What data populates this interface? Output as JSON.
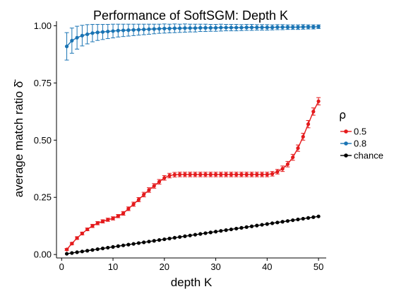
{
  "chart_data": {
    "type": "line",
    "title": "Performance of SoftSGM: Depth K",
    "xlabel": "depth K",
    "ylabel": "average match ratio δ̄",
    "xlim": [
      -1,
      51.5
    ],
    "ylim": [
      -0.015,
      1.02
    ],
    "xticks": [
      0,
      10,
      20,
      30,
      40,
      50
    ],
    "yticks": [
      0.0,
      0.25,
      0.5,
      0.75,
      1.0
    ],
    "xtick_labels": [
      "0",
      "10",
      "20",
      "30",
      "40",
      "50"
    ],
    "ytick_labels": [
      "0.00",
      "0.25",
      "0.50",
      "0.75",
      "1.00"
    ],
    "grid": false,
    "legend": {
      "title": "ρ",
      "position": "right"
    },
    "x": [
      1,
      2,
      3,
      4,
      5,
      6,
      7,
      8,
      9,
      10,
      11,
      12,
      13,
      14,
      15,
      16,
      17,
      18,
      19,
      20,
      21,
      22,
      23,
      24,
      25,
      26,
      27,
      28,
      29,
      30,
      31,
      32,
      33,
      34,
      35,
      36,
      37,
      38,
      39,
      40,
      41,
      42,
      43,
      44,
      45,
      46,
      47,
      48,
      49,
      50
    ],
    "series": [
      {
        "name": "0.5",
        "color": "#e41a1c",
        "values": [
          0.022,
          0.048,
          0.072,
          0.092,
          0.11,
          0.125,
          0.137,
          0.145,
          0.152,
          0.158,
          0.168,
          0.18,
          0.2,
          0.22,
          0.24,
          0.262,
          0.282,
          0.3,
          0.318,
          0.335,
          0.345,
          0.349,
          0.35,
          0.35,
          0.35,
          0.35,
          0.35,
          0.35,
          0.35,
          0.35,
          0.35,
          0.35,
          0.35,
          0.35,
          0.35,
          0.35,
          0.35,
          0.35,
          0.35,
          0.35,
          0.353,
          0.362,
          0.375,
          0.395,
          0.425,
          0.465,
          0.515,
          0.57,
          0.625,
          0.67
        ],
        "errors": [
          0.004,
          0.005,
          0.006,
          0.006,
          0.006,
          0.007,
          0.007,
          0.007,
          0.007,
          0.007,
          0.007,
          0.008,
          0.008,
          0.009,
          0.009,
          0.01,
          0.01,
          0.01,
          0.01,
          0.01,
          0.01,
          0.01,
          0.01,
          0.01,
          0.01,
          0.01,
          0.01,
          0.01,
          0.01,
          0.01,
          0.01,
          0.01,
          0.01,
          0.01,
          0.01,
          0.01,
          0.01,
          0.01,
          0.01,
          0.01,
          0.01,
          0.01,
          0.012,
          0.012,
          0.013,
          0.014,
          0.015,
          0.016,
          0.016,
          0.016
        ]
      },
      {
        "name": "0.8",
        "color": "#1a74b4",
        "values": [
          0.91,
          0.935,
          0.948,
          0.957,
          0.963,
          0.968,
          0.971,
          0.973,
          0.975,
          0.977,
          0.979,
          0.98,
          0.981,
          0.982,
          0.983,
          0.984,
          0.985,
          0.986,
          0.987,
          0.988,
          0.988,
          0.989,
          0.989,
          0.99,
          0.99,
          0.99,
          0.991,
          0.991,
          0.991,
          0.991,
          0.992,
          0.992,
          0.992,
          0.992,
          0.992,
          0.993,
          0.993,
          0.993,
          0.993,
          0.993,
          0.993,
          0.994,
          0.994,
          0.994,
          0.994,
          0.994,
          0.995,
          0.995,
          0.995,
          0.996
        ],
        "errors": [
          0.06,
          0.055,
          0.05,
          0.045,
          0.042,
          0.038,
          0.035,
          0.033,
          0.031,
          0.03,
          0.028,
          0.027,
          0.026,
          0.025,
          0.024,
          0.023,
          0.022,
          0.021,
          0.02,
          0.02,
          0.019,
          0.019,
          0.018,
          0.018,
          0.017,
          0.017,
          0.016,
          0.016,
          0.015,
          0.015,
          0.015,
          0.014,
          0.014,
          0.014,
          0.013,
          0.013,
          0.013,
          0.012,
          0.012,
          0.012,
          0.011,
          0.011,
          0.011,
          0.01,
          0.01,
          0.01,
          0.01,
          0.009,
          0.009,
          0.008
        ]
      },
      {
        "name": "chance",
        "color": "#000000",
        "values": [
          0.00333,
          0.00667,
          0.01,
          0.01333,
          0.01667,
          0.02,
          0.02333,
          0.02667,
          0.03,
          0.03333,
          0.03667,
          0.04,
          0.04333,
          0.04667,
          0.05,
          0.05333,
          0.05667,
          0.06,
          0.06333,
          0.06667,
          0.07,
          0.07333,
          0.07667,
          0.08,
          0.08333,
          0.08667,
          0.09,
          0.09333,
          0.09667,
          0.1,
          0.10333,
          0.10667,
          0.11,
          0.11333,
          0.11667,
          0.12,
          0.12333,
          0.12667,
          0.13,
          0.13333,
          0.13667,
          0.14,
          0.14333,
          0.14667,
          0.15,
          0.15333,
          0.15667,
          0.16,
          0.16333,
          0.16667
        ],
        "errors": null
      }
    ]
  }
}
